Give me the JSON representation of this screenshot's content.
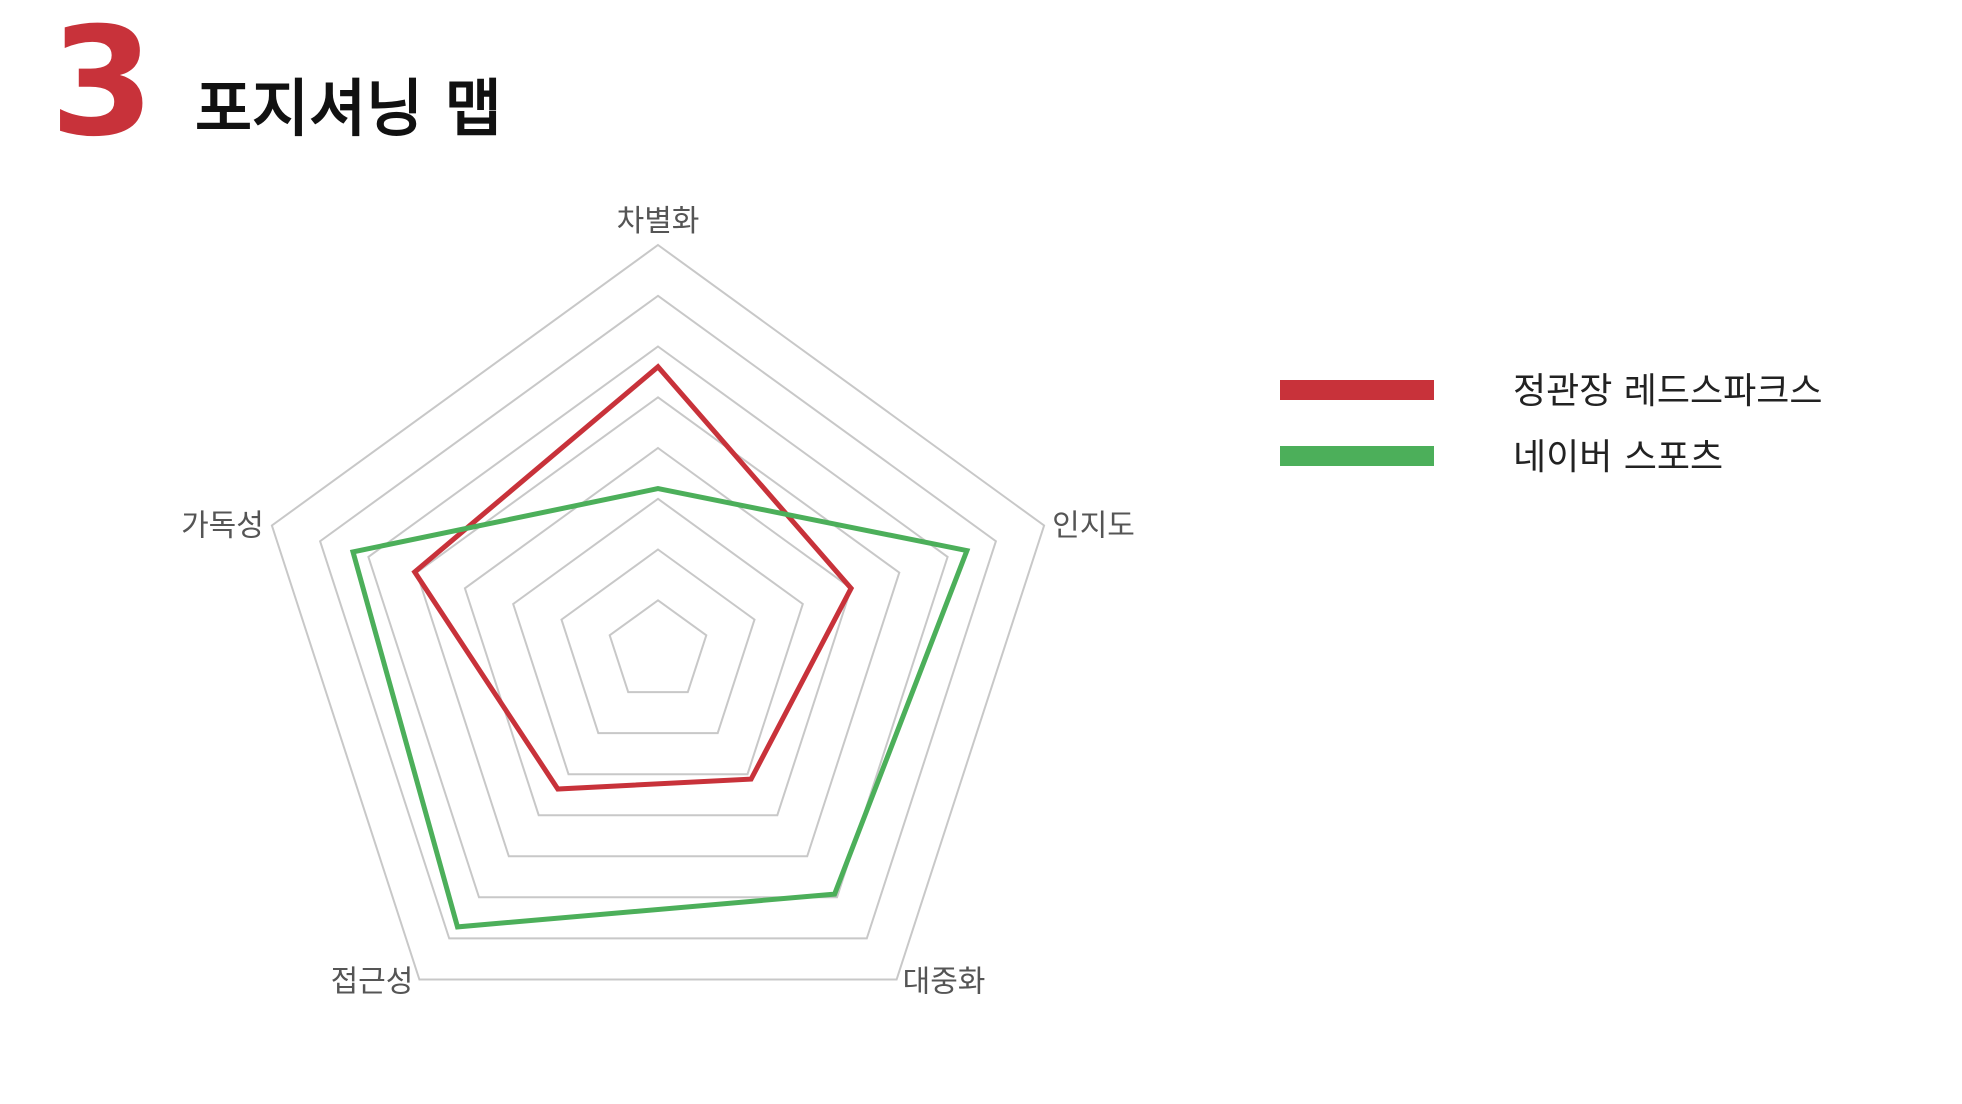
{
  "header": {
    "number": "3",
    "title": "포지셔닝 맵"
  },
  "chart_data": {
    "type": "radar",
    "axes": [
      "차별화",
      "인지도",
      "대중화",
      "접근성",
      "가독성"
    ],
    "rlim": [
      0,
      10
    ],
    "grid_levels": 8,
    "grid": true,
    "legend_position": "right",
    "series": [
      {
        "name": "정관장 레드스파크스",
        "color": "#c8323a",
        "values": [
          7.0,
          5.0,
          3.9,
          4.2,
          6.3
        ]
      },
      {
        "name": "네이버 스포츠",
        "color": "#4caf5a",
        "values": [
          4.0,
          8.0,
          7.4,
          8.4,
          7.9
        ]
      }
    ]
  }
}
